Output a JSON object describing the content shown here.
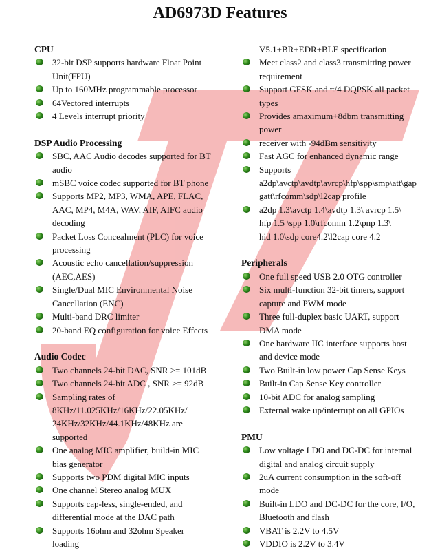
{
  "title": "AD6973D Features",
  "watermark_color": "#f4a3a3",
  "left": [
    {
      "heading": "CPU",
      "items": [
        [
          "32-bit DSP supports hardware Float Point",
          "Unit(FPU)"
        ],
        [
          "Up to 160MHz programmable processor"
        ],
        [
          "64Vectored interrupts"
        ],
        [
          "4 Levels interrupt priority"
        ]
      ]
    },
    {
      "heading": "DSP Audio Processing",
      "items": [
        [
          "SBC, AAC Audio decodes supported for BT",
          "audio"
        ],
        [
          "mSBC voice codec supported for BT phone"
        ],
        [
          "Supports MP2, MP3, WMA, APE, FLAC,",
          "AAC, MP4, M4A, WAV, AIF, AIFC audio",
          "decoding"
        ],
        [
          "Packet Loss Concealment (PLC) for voice",
          "processing"
        ],
        [
          "Acoustic echo cancellation/suppression",
          "(AEC,AES)"
        ],
        [
          "Single/Dual MIC Environmental Noise",
          "Cancellation (ENC)"
        ],
        [
          "Multi-band DRC limiter"
        ],
        [
          "20-band EQ configuration for voice Effects"
        ]
      ]
    },
    {
      "heading": "Audio Codec",
      "items": [
        [
          "Two channels 24-bit DAC, SNR >= 101dB"
        ],
        [
          "Two channels 24-bit ADC , SNR >= 92dB"
        ],
        [
          "Sampling rates of",
          "8KHz/11.025KHz/16KHz/22.05KHz/",
          "24KHz/32KHz/44.1KHz/48KHz are",
          "supported"
        ],
        [
          "One analog MIC amplifier, build-in MIC",
          "bias generator"
        ],
        [
          "Supports two PDM digital MIC inputs"
        ],
        [
          "One channel Stereo analog MUX"
        ],
        [
          "Supports cap-less, single-ended, and",
          "differential mode at the DAC path"
        ],
        [
          "Supports 16ohm and 32ohm Speaker",
          "loading"
        ]
      ]
    }
  ],
  "right": [
    {
      "continuation": "V5.1+BR+EDR+BLE specification",
      "items": [
        [
          "Meet class2 and class3 transmitting power",
          "requirement"
        ],
        [
          "Support GFSK and π/4 DQPSK all packet",
          "types"
        ],
        [
          "Provides amaximum+8dbm transmitting",
          "power"
        ],
        [
          "receiver with -94dBm sensitivity"
        ],
        [
          "Fast AGC for enhanced dynamic range"
        ],
        [
          "Supports",
          "a2dp\\avctp\\avdtp\\avrcp\\hfp\\spp\\smp\\att\\gap",
          "gatt\\rfcomm\\sdp\\l2cap profile"
        ],
        [
          "a2dp 1.3\\avctp 1.4\\avdtp 1.3\\ avrcp 1.5\\",
          "hfp 1.5 \\spp 1.0\\rfcomm 1.2\\pnp 1.3\\",
          "hid 1.0\\sdp core4.2\\l2cap core 4.2"
        ]
      ]
    },
    {
      "heading": "Peripherals",
      "items": [
        [
          "One full speed USB 2.0 OTG controller"
        ],
        [
          "Six multi-function 32-bit timers, support",
          "capture and PWM mode"
        ],
        [
          "Three full-duplex basic UART, support",
          "DMA mode"
        ],
        [
          "One hardware IIC interface supports host",
          "and device mode"
        ],
        [
          "Two Built-in low power Cap Sense Keys"
        ],
        [
          "Built-in Cap Sense Key controller"
        ],
        [
          "10-bit ADC for analog sampling"
        ],
        [
          "External wake up/interrupt on all GPIOs"
        ]
      ]
    },
    {
      "heading": "PMU",
      "items": [
        [
          "Low voltage LDO and DC-DC for internal",
          "digital and analog circuit supply"
        ],
        [
          "2uA current consumption in the soft-off",
          "mode"
        ],
        [
          "Built-in LDO and DC-DC for the core, I/O,",
          "Bluetooth and flash"
        ],
        [
          "VBAT is 2.2V to 4.5V"
        ],
        [
          "VDDIO is 2.2V to 3.4V"
        ]
      ]
    }
  ]
}
